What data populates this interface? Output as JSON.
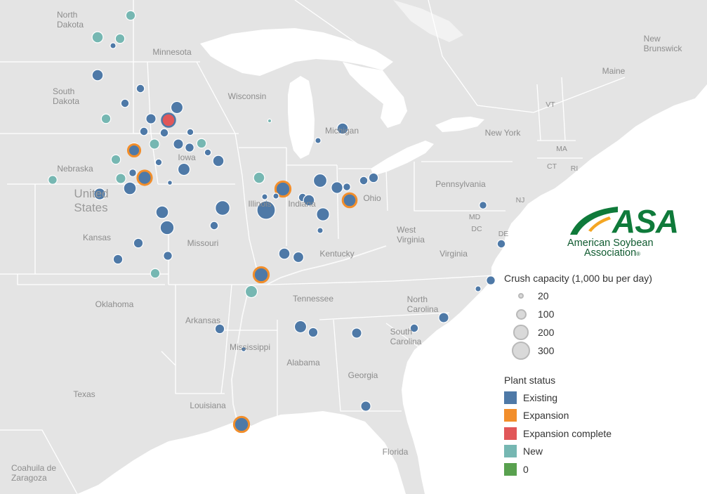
{
  "map_labels": {
    "north_dakota": "North\nDakota",
    "south_dakota": "South\nDakota",
    "minnesota": "Minnesota",
    "wisconsin": "Wisconsin",
    "michigan": "Michigan",
    "iowa": "Iowa",
    "nebraska": "Nebraska",
    "united_states": "United\nStates",
    "kansas": "Kansas",
    "missouri": "Missouri",
    "illinois": "Illinois",
    "indiana": "Indiana",
    "ohio": "Ohio",
    "kentucky": "Kentucky",
    "west_virginia": "West\nVirginia",
    "virginia": "Virginia",
    "pennsylvania": "Pennsylvania",
    "new_york": "New York",
    "vermont": "VT",
    "massachusetts": "MA",
    "connecticut": "CT",
    "rhode_island": "RI",
    "new_jersey": "NJ",
    "maryland": "MD",
    "delaware": "DE",
    "dc": "DC",
    "maine": "Maine",
    "new_brunswick": "New\nBrunswick",
    "oklahoma": "Oklahoma",
    "arkansas": "Arkansas",
    "tennessee": "Tennessee",
    "north_carolina": "North\nCarolina",
    "south_carolina": "South\nCarolina",
    "mississippi": "Mississippi",
    "alabama": "Alabama",
    "georgia": "Georgia",
    "texas": "Texas",
    "louisiana": "Louisiana",
    "florida": "Florida",
    "coahuila": "Coahuila de\nZaragoza"
  },
  "logo": {
    "acronym": "ASA",
    "line1": "American Soybean",
    "line2": "Association",
    "mark": "®"
  },
  "size_legend": {
    "title": "Crush capacity (1,000 bu per day)",
    "items": [
      {
        "label": "20",
        "value": 20
      },
      {
        "label": "100",
        "value": 100
      },
      {
        "label": "200",
        "value": 200
      },
      {
        "label": "300",
        "value": 300
      }
    ]
  },
  "status_legend": {
    "title": "Plant status",
    "items": [
      {
        "key": "existing",
        "label": "Existing",
        "color": "#4e79a7"
      },
      {
        "key": "expansion",
        "label": "Expansion",
        "color": "#f28e2b"
      },
      {
        "key": "expansion_complete",
        "label": "Expansion complete",
        "color": "#e15759"
      },
      {
        "key": "new",
        "label": "New",
        "color": "#76b7b2"
      },
      {
        "key": "zero",
        "label": "0",
        "color": "#59a14f"
      }
    ]
  },
  "plants": [
    {
      "state": "ND",
      "status": "new",
      "capacity": 80
    },
    {
      "state": "ND",
      "status": "new",
      "capacity": 110
    },
    {
      "state": "ND",
      "status": "new",
      "capacity": 80
    },
    {
      "state": "ND",
      "status": "existing",
      "capacity": 30
    },
    {
      "state": "SD",
      "status": "existing",
      "capacity": 110
    },
    {
      "state": "SD",
      "status": "new",
      "capacity": 80
    },
    {
      "state": "SD",
      "status": "existing",
      "capacity": 60
    },
    {
      "state": "MN",
      "status": "existing",
      "capacity": 60
    },
    {
      "state": "MN",
      "status": "existing",
      "capacity": 130
    },
    {
      "state": "MN",
      "status": "expansion_complete",
      "capacity": 160
    },
    {
      "state": "MN",
      "status": "existing",
      "capacity": 90
    },
    {
      "state": "MN",
      "status": "existing",
      "capacity": 60
    },
    {
      "state": "MN",
      "status": "existing",
      "capacity": 60
    },
    {
      "state": "MN",
      "status": "existing",
      "capacity": 40
    },
    {
      "state": "IA",
      "status": "new",
      "capacity": 90
    },
    {
      "state": "IA",
      "status": "existing",
      "capacity": 90
    },
    {
      "state": "IA",
      "status": "existing",
      "capacity": 70
    },
    {
      "state": "IA",
      "status": "new",
      "capacity": 80
    },
    {
      "state": "IA",
      "status": "existing",
      "capacity": 40
    },
    {
      "state": "IA",
      "status": "existing",
      "capacity": 40
    },
    {
      "state": "IA",
      "status": "existing",
      "capacity": 130
    },
    {
      "state": "IA",
      "status": "existing",
      "capacity": 110
    },
    {
      "state": "IA",
      "status": "existing",
      "capacity": 100
    },
    {
      "state": "NE",
      "status": "new",
      "capacity": 70
    },
    {
      "state": "NE",
      "status": "existing",
      "capacity": 120
    },
    {
      "state": "IA",
      "status": "expansion",
      "capacity": 130
    },
    {
      "state": "IA",
      "status": "expansion",
      "capacity": 180
    },
    {
      "state": "IA",
      "status": "new",
      "capacity": 90
    },
    {
      "state": "IA",
      "status": "existing",
      "capacity": 50
    },
    {
      "state": "IA",
      "status": "existing",
      "capacity": 20
    },
    {
      "state": "NE",
      "status": "new",
      "capacity": 80
    },
    {
      "state": "NE",
      "status": "existing",
      "capacity": 140
    },
    {
      "state": "MO",
      "status": "existing",
      "capacity": 140
    },
    {
      "state": "MO",
      "status": "existing",
      "capacity": 170
    },
    {
      "state": "MO",
      "status": "existing",
      "capacity": 60
    },
    {
      "state": "MO",
      "status": "existing",
      "capacity": 190
    },
    {
      "state": "KS",
      "status": "existing",
      "capacity": 80
    },
    {
      "state": "KS",
      "status": "existing",
      "capacity": 80
    },
    {
      "state": "KS",
      "status": "new",
      "capacity": 80
    },
    {
      "state": "KS",
      "status": "existing",
      "capacity": 70
    },
    {
      "state": "WI",
      "status": "new",
      "capacity": 10
    },
    {
      "state": "IL",
      "status": "new",
      "capacity": 110
    },
    {
      "state": "IL",
      "status": "expansion",
      "capacity": 200
    },
    {
      "state": "IL",
      "status": "existing",
      "capacity": 30
    },
    {
      "state": "IL",
      "status": "existing",
      "capacity": 30
    },
    {
      "state": "IL",
      "status": "existing",
      "capacity": 300
    },
    {
      "state": "IN",
      "status": "existing",
      "capacity": 160
    },
    {
      "state": "IN",
      "status": "existing",
      "capacity": 60
    },
    {
      "state": "IN",
      "status": "existing",
      "capacity": 110
    },
    {
      "state": "IN",
      "status": "existing",
      "capacity": 150
    },
    {
      "state": "IN",
      "status": "existing",
      "capacity": 30
    },
    {
      "state": "OH",
      "status": "existing",
      "capacity": 120
    },
    {
      "state": "OH",
      "status": "existing",
      "capacity": 50
    },
    {
      "state": "OH",
      "status": "expansion",
      "capacity": 170
    },
    {
      "state": "OH",
      "status": "existing",
      "capacity": 60
    },
    {
      "state": "OH",
      "status": "existing",
      "capacity": 80
    },
    {
      "state": "MI",
      "status": "existing",
      "capacity": 110
    },
    {
      "state": "MI",
      "status": "existing",
      "capacity": 30
    },
    {
      "state": "KY",
      "status": "existing",
      "capacity": 110
    },
    {
      "state": "KY",
      "status": "existing",
      "capacity": 100
    },
    {
      "state": "KY",
      "status": "expansion",
      "capacity": 200
    },
    {
      "state": "TN",
      "status": "new",
      "capacity": 130
    },
    {
      "state": "PA",
      "status": "existing",
      "capacity": 50
    },
    {
      "state": "MD",
      "status": "existing",
      "capacity": 60
    },
    {
      "state": "VA",
      "status": "existing",
      "capacity": 70
    },
    {
      "state": "VA",
      "status": "existing",
      "capacity": 30
    },
    {
      "state": "NC",
      "status": "existing",
      "capacity": 90
    },
    {
      "state": "SC",
      "status": "existing",
      "capacity": 60
    },
    {
      "state": "AR",
      "status": "existing",
      "capacity": 80
    },
    {
      "state": "MS",
      "status": "existing",
      "capacity": 20
    },
    {
      "state": "AL",
      "status": "existing",
      "capacity": 130
    },
    {
      "state": "AL",
      "status": "existing",
      "capacity": 80
    },
    {
      "state": "GA",
      "status": "existing",
      "capacity": 90
    },
    {
      "state": "GA",
      "status": "existing",
      "capacity": 90
    },
    {
      "state": "LA",
      "status": "expansion",
      "capacity": 200
    }
  ]
}
